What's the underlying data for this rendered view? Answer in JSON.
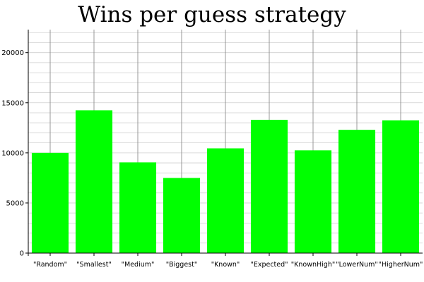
{
  "chart_data": {
    "type": "bar",
    "title": "Wins per guess strategy",
    "xlabel": "",
    "ylabel": "",
    "categories": [
      "\"Random\"",
      "\"Smallest\"",
      "\"Medium\"",
      "\"Biggest\"",
      "\"Known\"",
      "\"Expected\"",
      "\"KnownHigh\"",
      "\"LowerNum\"",
      "\"HigherNum\""
    ],
    "values": [
      10000,
      14250,
      9050,
      7500,
      10450,
      13300,
      10250,
      12300,
      13250
    ],
    "ylim": [
      0,
      22300
    ],
    "yticks": [
      0,
      5000,
      10000,
      15000,
      20000
    ],
    "ytick_labels": [
      "0",
      "5000",
      "10000",
      "15000",
      "20000"
    ],
    "minor_ytick_step": 1000,
    "grid": true,
    "legend": "none",
    "bar_color": "#00ff00",
    "grid_color": "#cfcfcf",
    "axis_color": "#000000"
  }
}
